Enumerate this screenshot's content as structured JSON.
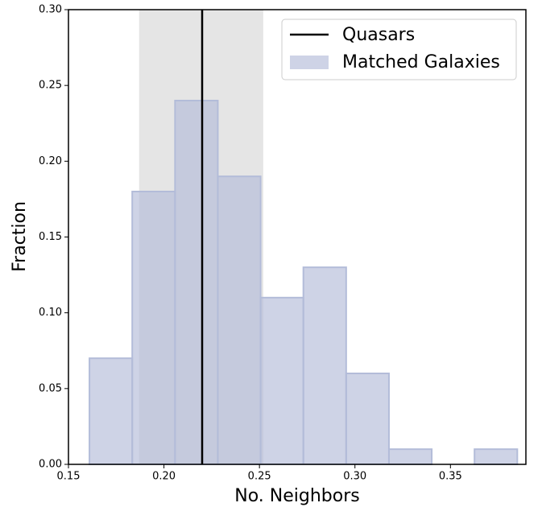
{
  "chart_data": {
    "type": "histogram",
    "xlabel": "No. Neighbors",
    "ylabel": "Fraction",
    "bins": [
      0.161,
      0.1834,
      0.2058,
      0.2282,
      0.2506,
      0.273,
      0.2954,
      0.3178,
      0.3402,
      0.3626,
      0.385
    ],
    "series": [
      {
        "name": "Matched Galaxies",
        "color": "#b3bcd9",
        "values": [
          0.07,
          0.18,
          0.24,
          0.19,
          0.11,
          0.13,
          0.06,
          0.01,
          0.0,
          0.01
        ]
      }
    ],
    "vline": {
      "name": "Quasars",
      "value": 0.22,
      "color": "#000000"
    },
    "span": [
      0.187,
      0.252
    ],
    "span_color": "#e5e5e5",
    "xlim": [
      0.15,
      0.3895
    ],
    "ylim": [
      0,
      0.3
    ],
    "xticks": [
      {
        "value": 0.15,
        "label": "0.15"
      },
      {
        "value": 0.2,
        "label": "0.20"
      },
      {
        "value": 0.25,
        "label": "0.25"
      },
      {
        "value": 0.3,
        "label": "0.30"
      },
      {
        "value": 0.35,
        "label": "0.35"
      }
    ],
    "yticks": [
      {
        "value": 0,
        "label": "0.00"
      },
      {
        "value": 0.05,
        "label": "0.05"
      },
      {
        "value": 0.1,
        "label": "0.10"
      },
      {
        "value": 0.15,
        "label": "0.15"
      },
      {
        "value": 0.2,
        "label": "0.20"
      },
      {
        "value": 0.25,
        "label": "0.25"
      },
      {
        "value": 0.3,
        "label": "0.30"
      }
    ],
    "legend": "upper right"
  }
}
